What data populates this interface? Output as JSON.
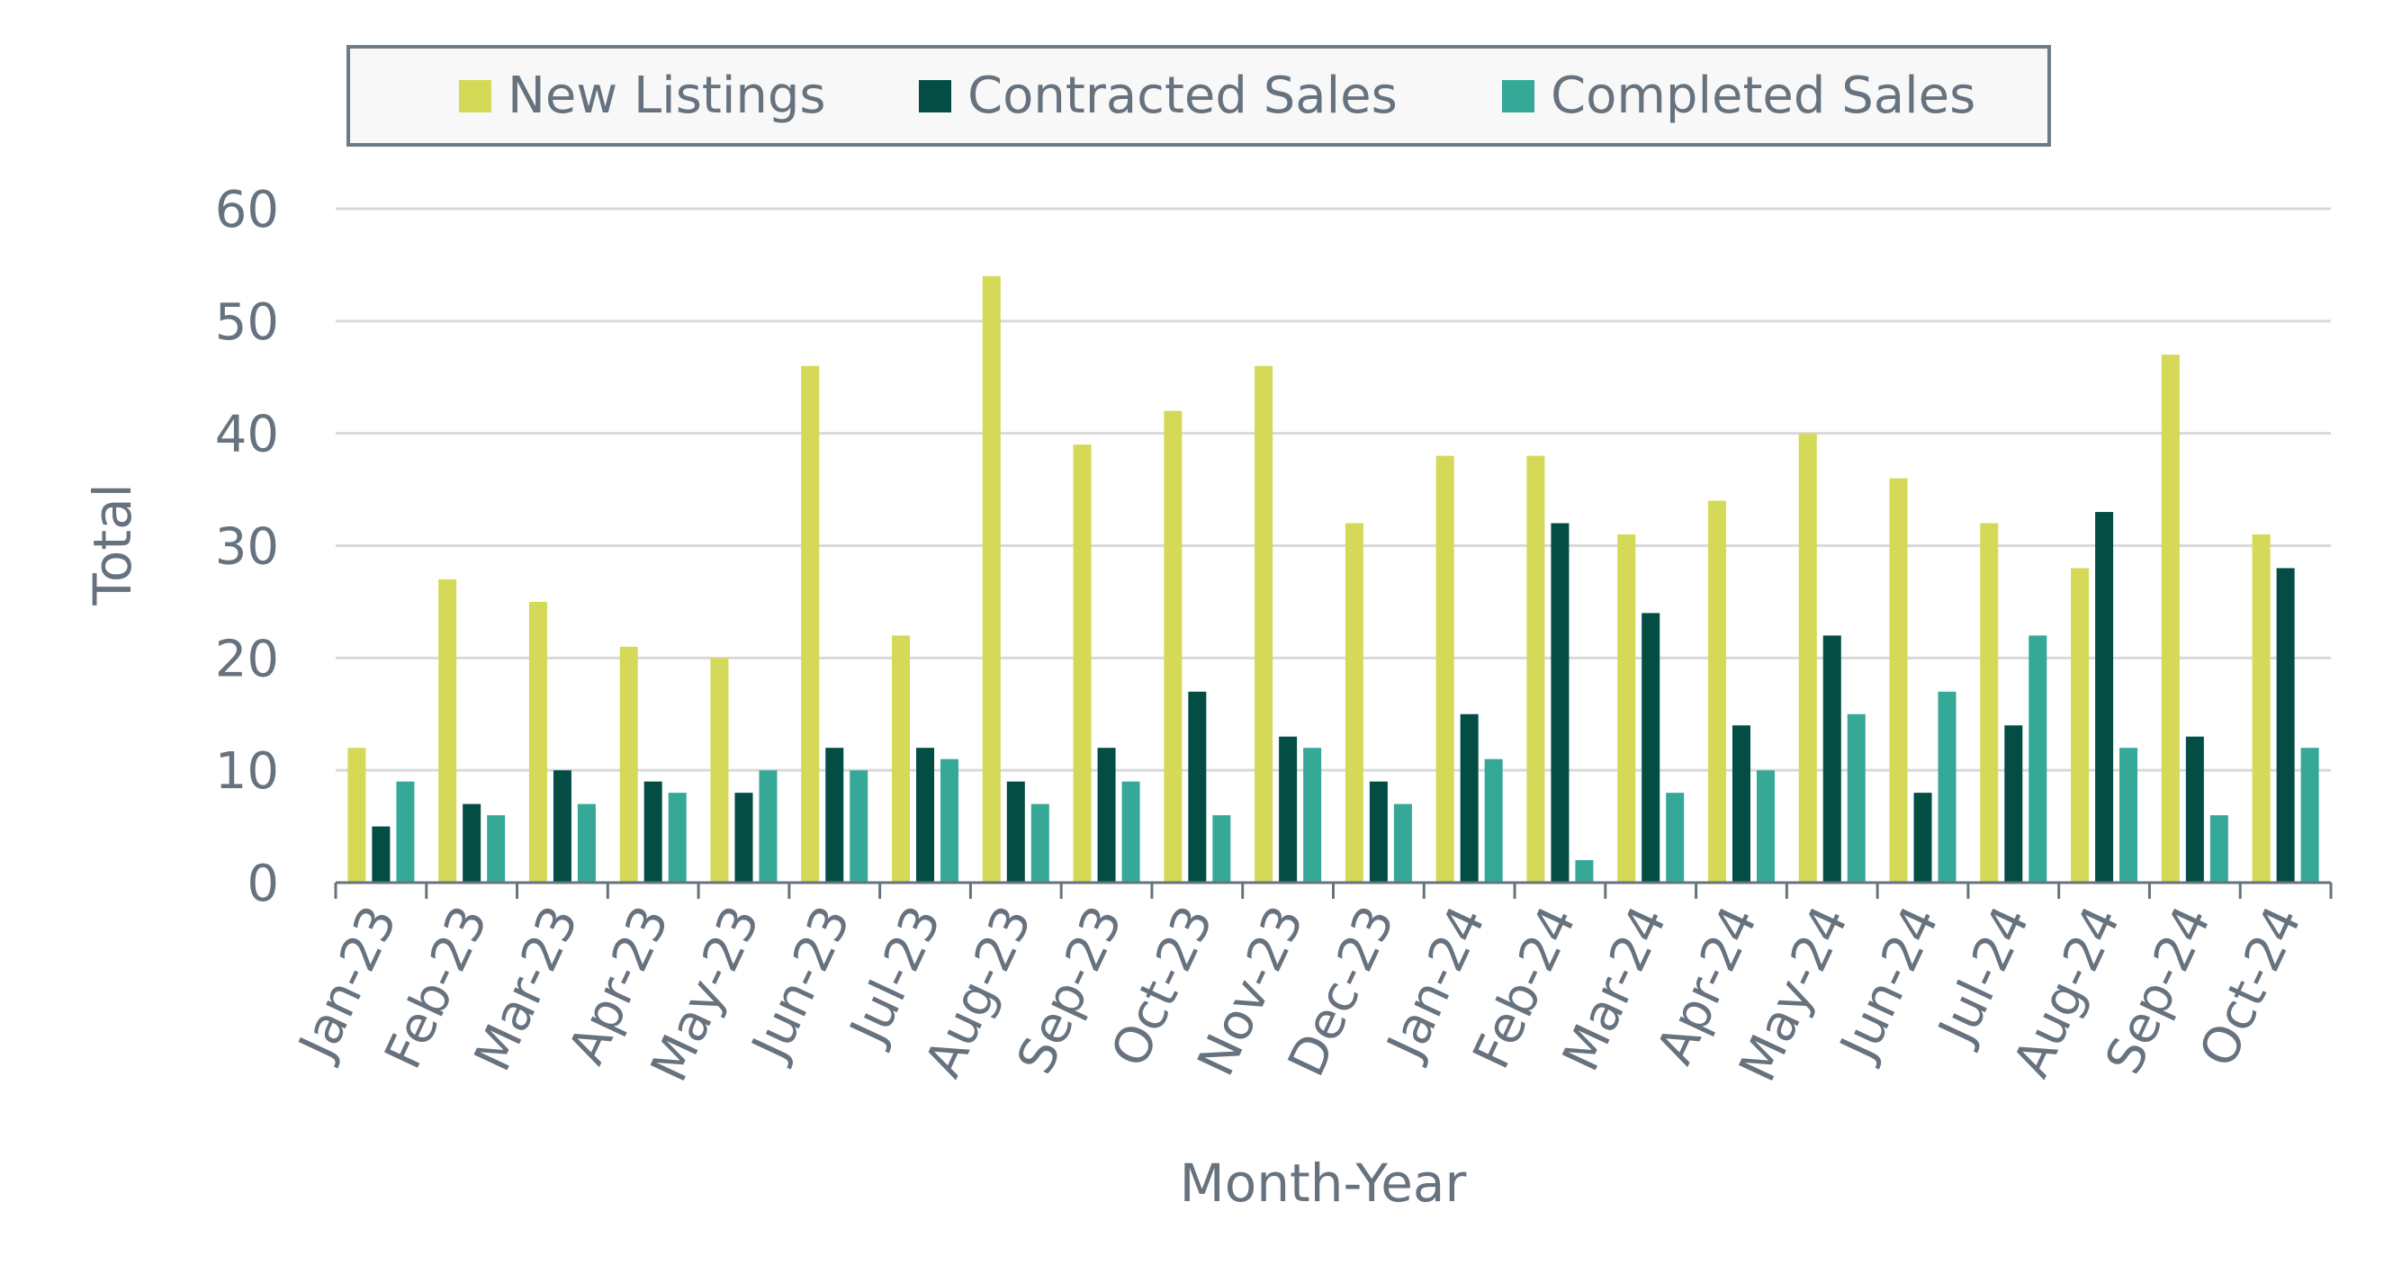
{
  "chart_data": {
    "type": "bar",
    "xlabel": "Month-Year",
    "ylabel": "Total",
    "ylim": [
      0,
      60
    ],
    "yticks": [
      0,
      10,
      20,
      30,
      40,
      50,
      60
    ],
    "grid": true,
    "legend_position": "top",
    "categories": [
      "Jan-23",
      "Feb-23",
      "Mar-23",
      "Apr-23",
      "May-23",
      "Jun-23",
      "Jul-23",
      "Aug-23",
      "Sep-23",
      "Oct-23",
      "Nov-23",
      "Dec-23",
      "Jan-24",
      "Feb-24",
      "Mar-24",
      "Apr-24",
      "May-24",
      "Jun-24",
      "Jul-24",
      "Aug-24",
      "Sep-24",
      "Oct-24"
    ],
    "series": [
      {
        "name": "New Listings",
        "color": "#d4d957",
        "values": [
          12,
          27,
          25,
          21,
          20,
          46,
          22,
          54,
          39,
          42,
          46,
          32,
          38,
          38,
          31,
          34,
          40,
          36,
          32,
          28,
          47,
          31
        ]
      },
      {
        "name": "Contracted Sales",
        "color": "#034d45",
        "values": [
          5,
          7,
          10,
          9,
          8,
          12,
          12,
          9,
          12,
          17,
          13,
          9,
          15,
          32,
          24,
          14,
          22,
          8,
          14,
          33,
          13,
          28
        ]
      },
      {
        "name": "Completed Sales",
        "color": "#36a897",
        "values": [
          9,
          6,
          7,
          8,
          10,
          10,
          11,
          7,
          9,
          6,
          12,
          7,
          11,
          2,
          8,
          10,
          15,
          17,
          22,
          12,
          6,
          12
        ]
      }
    ]
  }
}
